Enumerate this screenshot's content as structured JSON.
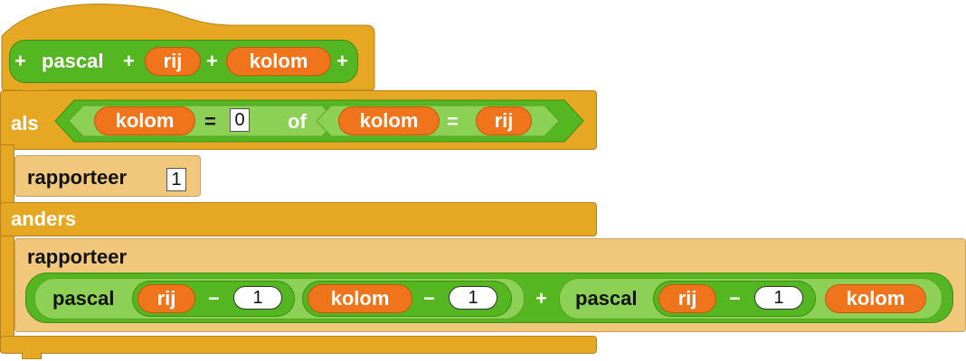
{
  "hat": {
    "title": "pascal",
    "plus": "+",
    "params": [
      "rij",
      "kolom"
    ]
  },
  "if_block": {
    "keyword": "als",
    "left": {
      "var": "kolom",
      "op": "=",
      "value": "0"
    },
    "connector": "of",
    "right": {
      "var": "kolom",
      "op": "=",
      "var2": "rij"
    },
    "then_report": {
      "label": "rapporteer",
      "value": "1"
    },
    "else_label": "anders",
    "else_report": {
      "label": "rapporteer",
      "expr": {
        "left_call": {
          "name": "pascal",
          "arg1": {
            "var": "rij",
            "op": "−",
            "value": "1"
          },
          "arg2": {
            "var": "kolom",
            "op": "−",
            "value": "1"
          }
        },
        "op": "+",
        "right_call": {
          "name": "pascal",
          "arg1": {
            "var": "rij",
            "op": "−",
            "value": "1"
          },
          "arg2": {
            "var": "kolom"
          }
        }
      }
    }
  },
  "colors": {
    "control": "#e6a822",
    "custom": "#54b620",
    "operator": "#8cd155",
    "variable": "#f0741c"
  }
}
